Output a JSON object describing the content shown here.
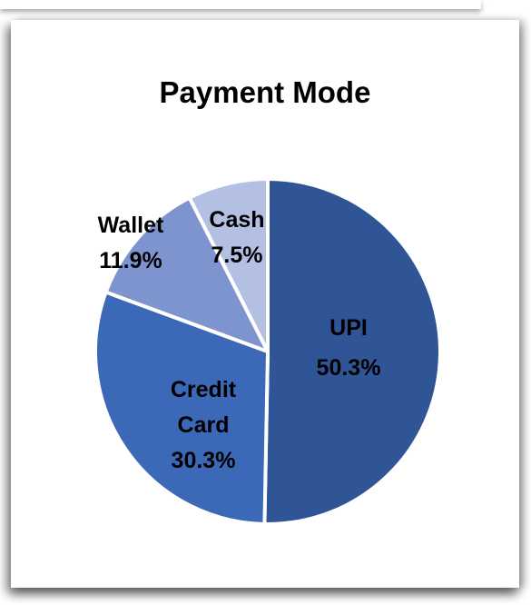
{
  "chart_data": {
    "type": "pie",
    "title": "Payment Mode",
    "slices": [
      {
        "label_lines": [
          "UPI"
        ],
        "percent_label": "50.3%",
        "value": 50.3,
        "color": "#2F5597"
      },
      {
        "label_lines": [
          "Credit",
          "Card"
        ],
        "percent_label": "30.3%",
        "value": 30.3,
        "color": "#3C68B8"
      },
      {
        "label_lines": [
          "Wallet"
        ],
        "percent_label": "11.9%",
        "value": 11.9,
        "color": "#7E94CF"
      },
      {
        "label_lines": [
          "Cash"
        ],
        "percent_label": "7.5%",
        "value": 7.5,
        "color": "#B4C0E2"
      }
    ],
    "legend": false,
    "data_labels": "inside"
  }
}
